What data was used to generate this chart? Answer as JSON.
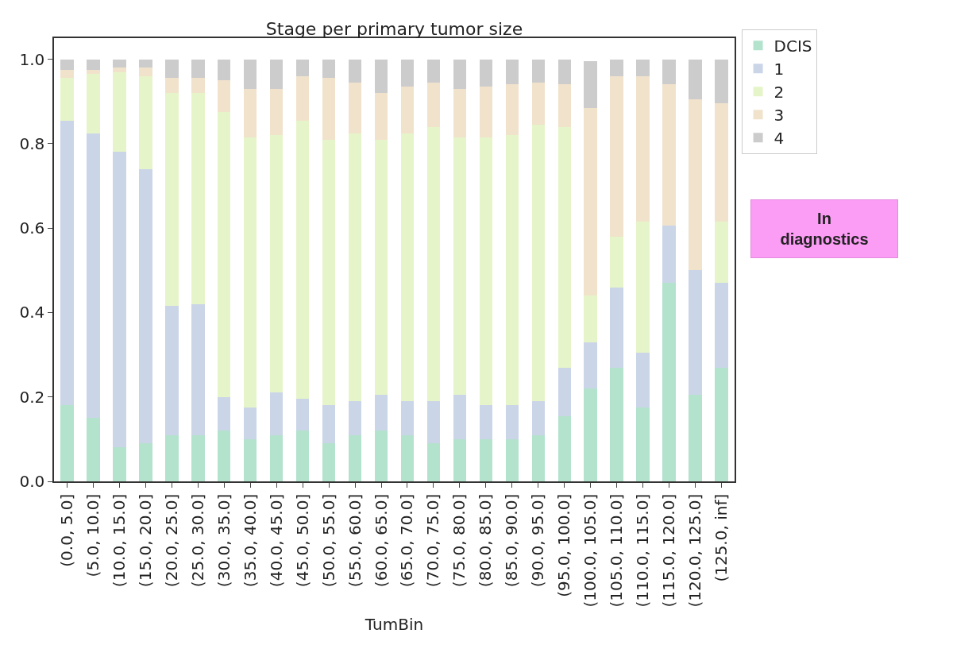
{
  "chart_data": {
    "type": "bar",
    "title": "Stage per primary tumor size",
    "xlabel": "TumBin",
    "stacked": true,
    "legend": "top right",
    "categories": [
      "(0.0, 5.0]",
      "(5.0, 10.0]",
      "(10.0, 15.0]",
      "(15.0, 20.0]",
      "(20.0, 25.0]",
      "(25.0, 30.0]",
      "(30.0, 35.0]",
      "(35.0, 40.0]",
      "(40.0, 45.0]",
      "(45.0, 50.0]",
      "(50.0, 55.0]",
      "(55.0, 60.0]",
      "(60.0, 65.0]",
      "(65.0, 70.0]",
      "(70.0, 75.0]",
      "(75.0, 80.0]",
      "(80.0, 85.0]",
      "(85.0, 90.0]",
      "(90.0, 95.0]",
      "(95.0, 100.0]",
      "(100.0, 105.0]",
      "(105.0, 110.0]",
      "(110.0, 115.0]",
      "(115.0, 120.0]",
      "(120.0, 125.0]",
      "(125.0, inf]"
    ],
    "series": [
      {
        "name": "DCIS",
        "color": "#b3e2cd",
        "values": [
          0.18,
          0.15,
          0.08,
          0.09,
          0.11,
          0.11,
          0.12,
          0.1,
          0.11,
          0.12,
          0.09,
          0.11,
          0.12,
          0.11,
          0.09,
          0.1,
          0.1,
          0.1,
          0.11,
          0.155,
          0.22,
          0.27,
          0.175,
          0.47,
          0.205,
          0.27
        ]
      },
      {
        "name": "1",
        "color": "#cbd5e8",
        "values": [
          0.675,
          0.675,
          0.7,
          0.65,
          0.305,
          0.31,
          0.08,
          0.075,
          0.1,
          0.075,
          0.09,
          0.08,
          0.085,
          0.08,
          0.1,
          0.105,
          0.08,
          0.08,
          0.08,
          0.115,
          0.11,
          0.19,
          0.13,
          0.135,
          0.295,
          0.2
        ]
      },
      {
        "name": "2",
        "color": "#e6f5c9",
        "values": [
          0.1,
          0.14,
          0.19,
          0.22,
          0.505,
          0.5,
          0.675,
          0.64,
          0.61,
          0.66,
          0.63,
          0.635,
          0.605,
          0.635,
          0.65,
          0.61,
          0.635,
          0.64,
          0.655,
          0.57,
          0.11,
          0.12,
          0.31,
          0.0,
          0.0,
          0.145
        ]
      },
      {
        "name": "3",
        "color": "#f1e2cc",
        "values": [
          0.02,
          0.01,
          0.01,
          0.02,
          0.035,
          0.035,
          0.075,
          0.115,
          0.11,
          0.105,
          0.145,
          0.12,
          0.11,
          0.11,
          0.105,
          0.115,
          0.12,
          0.12,
          0.1,
          0.1,
          0.445,
          0.38,
          0.345,
          0.335,
          0.405,
          0.28
        ]
      },
      {
        "name": "4",
        "color": "#cccccc",
        "values": [
          0.025,
          0.025,
          0.02,
          0.02,
          0.045,
          0.045,
          0.05,
          0.07,
          0.07,
          0.04,
          0.045,
          0.055,
          0.08,
          0.065,
          0.055,
          0.07,
          0.065,
          0.06,
          0.055,
          0.06,
          0.11,
          0.04,
          0.04,
          0.06,
          0.095,
          0.105
        ]
      }
    ],
    "ylim": [
      0,
      1.05
    ],
    "yticks": [
      {
        "value": 0,
        "label": "0.0"
      },
      0.2,
      0.4,
      0.6,
      0.8,
      {
        "value": 1,
        "label": "1.0"
      }
    ],
    "annotations": [
      "In diagnostics"
    ]
  }
}
